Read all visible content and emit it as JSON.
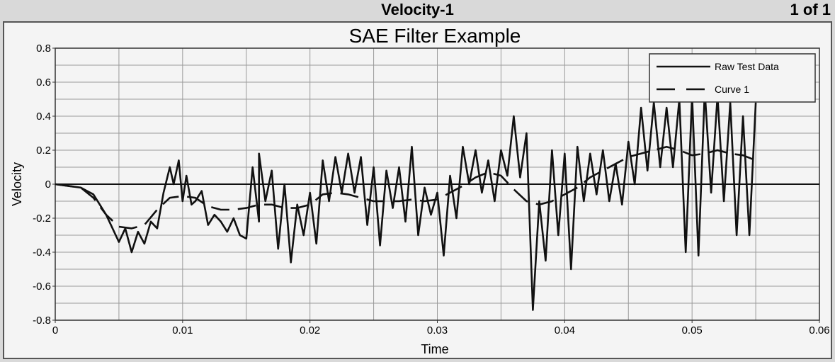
{
  "header": {
    "title": "Velocity-1",
    "page_indicator": "1 of 1"
  },
  "chart_data": {
    "type": "line",
    "title": "SAE Filter Example",
    "xlabel": "Time",
    "ylabel": "Velocity",
    "xlim": [
      0,
      0.06
    ],
    "ylim": [
      -0.8,
      0.8
    ],
    "x_ticks": [
      0,
      0.01,
      0.02,
      0.03,
      0.04,
      0.05,
      0.06
    ],
    "x_tick_labels": [
      "0",
      "0.01",
      "0.02",
      "0.03",
      "0.04",
      "0.05",
      "0.06"
    ],
    "y_ticks": [
      -0.8,
      -0.6,
      -0.4,
      -0.2,
      0,
      0.2,
      0.4,
      0.6,
      0.8
    ],
    "y_tick_labels": [
      "-0.8",
      "-0.6",
      "-0.4",
      "-0.2",
      "0",
      "0.2",
      "0.4",
      "0.6",
      "0.8"
    ],
    "grid": true,
    "legend_position": "top-right",
    "series": [
      {
        "name": "Raw Test Data",
        "style": "solid",
        "color": "#111111",
        "points": [
          [
            0,
            0
          ],
          [
            0.001,
            -0.01
          ],
          [
            0.002,
            -0.02
          ],
          [
            0.003,
            -0.06
          ],
          [
            0.004,
            -0.18
          ],
          [
            0.005,
            -0.34
          ],
          [
            0.0055,
            -0.26
          ],
          [
            0.006,
            -0.4
          ],
          [
            0.0065,
            -0.28
          ],
          [
            0.007,
            -0.35
          ],
          [
            0.0075,
            -0.22
          ],
          [
            0.008,
            -0.26
          ],
          [
            0.0085,
            -0.05
          ],
          [
            0.009,
            0.1
          ],
          [
            0.0093,
            0.0
          ],
          [
            0.0097,
            0.14
          ],
          [
            0.01,
            -0.1
          ],
          [
            0.0103,
            0.05
          ],
          [
            0.0107,
            -0.12
          ],
          [
            0.011,
            -0.1
          ],
          [
            0.0115,
            -0.04
          ],
          [
            0.012,
            -0.24
          ],
          [
            0.0125,
            -0.18
          ],
          [
            0.013,
            -0.22
          ],
          [
            0.0135,
            -0.28
          ],
          [
            0.014,
            -0.2
          ],
          [
            0.0145,
            -0.3
          ],
          [
            0.015,
            -0.32
          ],
          [
            0.0155,
            0.1
          ],
          [
            0.016,
            -0.22
          ],
          [
            0.016,
            0.18
          ],
          [
            0.0165,
            -0.1
          ],
          [
            0.017,
            0.08
          ],
          [
            0.0175,
            -0.38
          ],
          [
            0.018,
            0.0
          ],
          [
            0.0185,
            -0.46
          ],
          [
            0.019,
            -0.12
          ],
          [
            0.0195,
            -0.3
          ],
          [
            0.02,
            -0.05
          ],
          [
            0.0205,
            -0.35
          ],
          [
            0.021,
            0.14
          ],
          [
            0.0215,
            -0.1
          ],
          [
            0.022,
            0.16
          ],
          [
            0.0225,
            -0.05
          ],
          [
            0.023,
            0.18
          ],
          [
            0.0235,
            -0.05
          ],
          [
            0.024,
            0.16
          ],
          [
            0.0245,
            -0.24
          ],
          [
            0.025,
            0.1
          ],
          [
            0.0255,
            -0.36
          ],
          [
            0.026,
            0.08
          ],
          [
            0.0265,
            -0.14
          ],
          [
            0.027,
            0.1
          ],
          [
            0.0275,
            -0.22
          ],
          [
            0.028,
            0.22
          ],
          [
            0.0285,
            -0.3
          ],
          [
            0.029,
            -0.02
          ],
          [
            0.0295,
            -0.18
          ],
          [
            0.03,
            -0.05
          ],
          [
            0.0305,
            -0.42
          ],
          [
            0.031,
            0.05
          ],
          [
            0.0315,
            -0.2
          ],
          [
            0.032,
            0.22
          ],
          [
            0.0325,
            0.0
          ],
          [
            0.033,
            0.2
          ],
          [
            0.0335,
            -0.05
          ],
          [
            0.034,
            0.14
          ],
          [
            0.0345,
            -0.1
          ],
          [
            0.035,
            0.2
          ],
          [
            0.0355,
            0.05
          ],
          [
            0.036,
            0.4
          ],
          [
            0.0365,
            0.04
          ],
          [
            0.037,
            0.3
          ],
          [
            0.0375,
            -0.74
          ],
          [
            0.038,
            -0.1
          ],
          [
            0.0385,
            -0.45
          ],
          [
            0.039,
            0.2
          ],
          [
            0.0395,
            -0.3
          ],
          [
            0.04,
            0.18
          ],
          [
            0.0405,
            -0.5
          ],
          [
            0.041,
            0.22
          ],
          [
            0.0415,
            -0.1
          ],
          [
            0.042,
            0.18
          ],
          [
            0.0425,
            -0.06
          ],
          [
            0.043,
            0.2
          ],
          [
            0.0435,
            -0.1
          ],
          [
            0.044,
            0.12
          ],
          [
            0.0445,
            -0.12
          ],
          [
            0.045,
            0.25
          ],
          [
            0.0455,
            0.0
          ],
          [
            0.046,
            0.45
          ],
          [
            0.0465,
            0.08
          ],
          [
            0.047,
            0.48
          ],
          [
            0.0475,
            0.1
          ],
          [
            0.048,
            0.45
          ],
          [
            0.0485,
            0.1
          ],
          [
            0.049,
            0.5
          ],
          [
            0.0495,
            -0.4
          ],
          [
            0.05,
            0.52
          ],
          [
            0.0505,
            -0.42
          ],
          [
            0.051,
            0.55
          ],
          [
            0.0515,
            -0.05
          ],
          [
            0.052,
            0.52
          ],
          [
            0.0525,
            -0.1
          ],
          [
            0.053,
            0.48
          ],
          [
            0.0535,
            -0.3
          ],
          [
            0.054,
            0.4
          ],
          [
            0.0545,
            -0.3
          ],
          [
            0.055,
            0.48
          ]
        ]
      },
      {
        "name": "Curve 1",
        "style": "dashed",
        "color": "#111111",
        "points": [
          [
            0,
            0
          ],
          [
            0.002,
            -0.02
          ],
          [
            0.003,
            -0.08
          ],
          [
            0.004,
            -0.18
          ],
          [
            0.005,
            -0.25
          ],
          [
            0.006,
            -0.26
          ],
          [
            0.007,
            -0.24
          ],
          [
            0.008,
            -0.15
          ],
          [
            0.009,
            -0.08
          ],
          [
            0.01,
            -0.07
          ],
          [
            0.011,
            -0.08
          ],
          [
            0.012,
            -0.13
          ],
          [
            0.013,
            -0.15
          ],
          [
            0.014,
            -0.15
          ],
          [
            0.015,
            -0.14
          ],
          [
            0.016,
            -0.12
          ],
          [
            0.017,
            -0.12
          ],
          [
            0.018,
            -0.14
          ],
          [
            0.019,
            -0.14
          ],
          [
            0.02,
            -0.12
          ],
          [
            0.021,
            -0.06
          ],
          [
            0.022,
            -0.05
          ],
          [
            0.023,
            -0.06
          ],
          [
            0.024,
            -0.08
          ],
          [
            0.025,
            -0.1
          ],
          [
            0.026,
            -0.1
          ],
          [
            0.027,
            -0.1
          ],
          [
            0.028,
            -0.09
          ],
          [
            0.029,
            -0.1
          ],
          [
            0.03,
            -0.09
          ],
          [
            0.031,
            -0.05
          ],
          [
            0.032,
            -0.01
          ],
          [
            0.033,
            0.04
          ],
          [
            0.034,
            0.07
          ],
          [
            0.035,
            0.05
          ],
          [
            0.036,
            -0.03
          ],
          [
            0.037,
            -0.1
          ],
          [
            0.038,
            -0.12
          ],
          [
            0.039,
            -0.1
          ],
          [
            0.04,
            -0.06
          ],
          [
            0.041,
            -0.02
          ],
          [
            0.042,
            0.04
          ],
          [
            0.043,
            0.08
          ],
          [
            0.044,
            0.12
          ],
          [
            0.045,
            0.16
          ],
          [
            0.046,
            0.18
          ],
          [
            0.047,
            0.2
          ],
          [
            0.048,
            0.22
          ],
          [
            0.049,
            0.2
          ],
          [
            0.05,
            0.17
          ],
          [
            0.051,
            0.18
          ],
          [
            0.052,
            0.2
          ],
          [
            0.053,
            0.18
          ],
          [
            0.054,
            0.17
          ],
          [
            0.055,
            0.14
          ]
        ]
      }
    ]
  }
}
